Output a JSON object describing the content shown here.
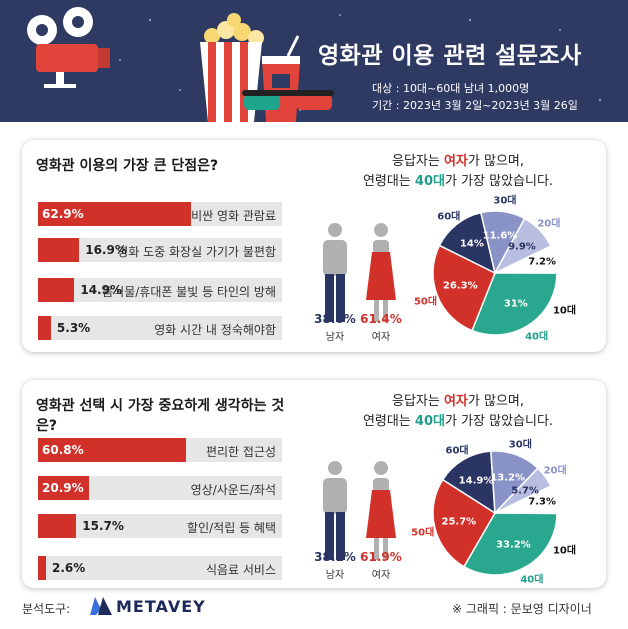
{
  "header": {
    "title": "영화관 이용 관련 설문조사",
    "subject": "대상 : 10대~60대 남녀 1,000명",
    "period": "기간 : 2023년 3월 2일~2023년 3월 26일"
  },
  "colors": {
    "bar": "#d2312a",
    "male": "#2b3563",
    "female": "#d2312a",
    "teens": "#ffffff",
    "twenties": "#b9bde0",
    "thirties": "#8a93c8",
    "sixties": "#2b3563",
    "fifties": "#d2312a",
    "forties": "#2aa88f"
  },
  "chart_data": [
    {
      "type": "bar",
      "title": "영화관 이용의 가장 큰 단점은?",
      "categories": [
        "비싼 영화 관람료",
        "영화 도중 화장실 가기가 불편함",
        "음식물/휴대폰 불빛 등 타인의 방해",
        "영화 시간 내 정숙해야함"
      ],
      "values": [
        62.9,
        16.9,
        14.9,
        5.3
      ],
      "labels": [
        "62.9%",
        "16.9%",
        "14.9%",
        "5.3%"
      ],
      "respondent_note": {
        "pre": "응답자는 ",
        "f": "여자",
        "mid": "가 많으며,",
        "pre2": "연령대는 ",
        "age": "40대",
        "post": "가 가장 많았습니다."
      },
      "gender": {
        "male_value": 38.6,
        "male_text": "38.6%",
        "male_label": "남자",
        "female_value": 61.4,
        "female_text": "61.4%",
        "female_label": "여자"
      },
      "age_pie": {
        "type": "pie",
        "order": [
          "10대",
          "40대",
          "50대",
          "60대",
          "30대",
          "20대"
        ],
        "values": [
          7.2,
          31,
          26.3,
          14,
          11.6,
          9.9
        ],
        "texts": [
          "7.2%",
          "31%",
          "26.3%",
          "14%",
          "11.6%",
          "9.9%"
        ]
      }
    },
    {
      "type": "bar",
      "title": "영화관 선택 시 가장 중요하게 생각하는 것은?",
      "categories": [
        "편리한 접근성",
        "영상/사운드/좌석",
        "할인/적립 등 혜택",
        "식음료 서비스"
      ],
      "values": [
        60.8,
        20.9,
        15.7,
        2.6
      ],
      "labels": [
        "60.8%",
        "20.9%",
        "15.7%",
        "2.6%"
      ],
      "respondent_note": {
        "pre": "응답자는 ",
        "f": "여자",
        "mid": "가 많으며,",
        "pre2": "연령대는 ",
        "age": "40대",
        "post": "가 가장 많았습니다."
      },
      "gender": {
        "male_value": 38.1,
        "male_text": "38.1%",
        "male_label": "남자",
        "female_value": 61.9,
        "female_text": "61.9%",
        "female_label": "여자"
      },
      "age_pie": {
        "type": "pie",
        "order": [
          "10대",
          "40대",
          "50대",
          "60대",
          "30대",
          "20대"
        ],
        "values": [
          7.3,
          33.2,
          25.7,
          14.9,
          13.2,
          5.7
        ],
        "texts": [
          "7.3%",
          "33.2%",
          "25.7%",
          "14.9%",
          "13.2%",
          "5.7%"
        ]
      }
    }
  ],
  "footer": {
    "tool_label": "분석도구:",
    "brand": "METAVEY",
    "credit": "※ 그래픽 : 문보영 디자이너"
  }
}
